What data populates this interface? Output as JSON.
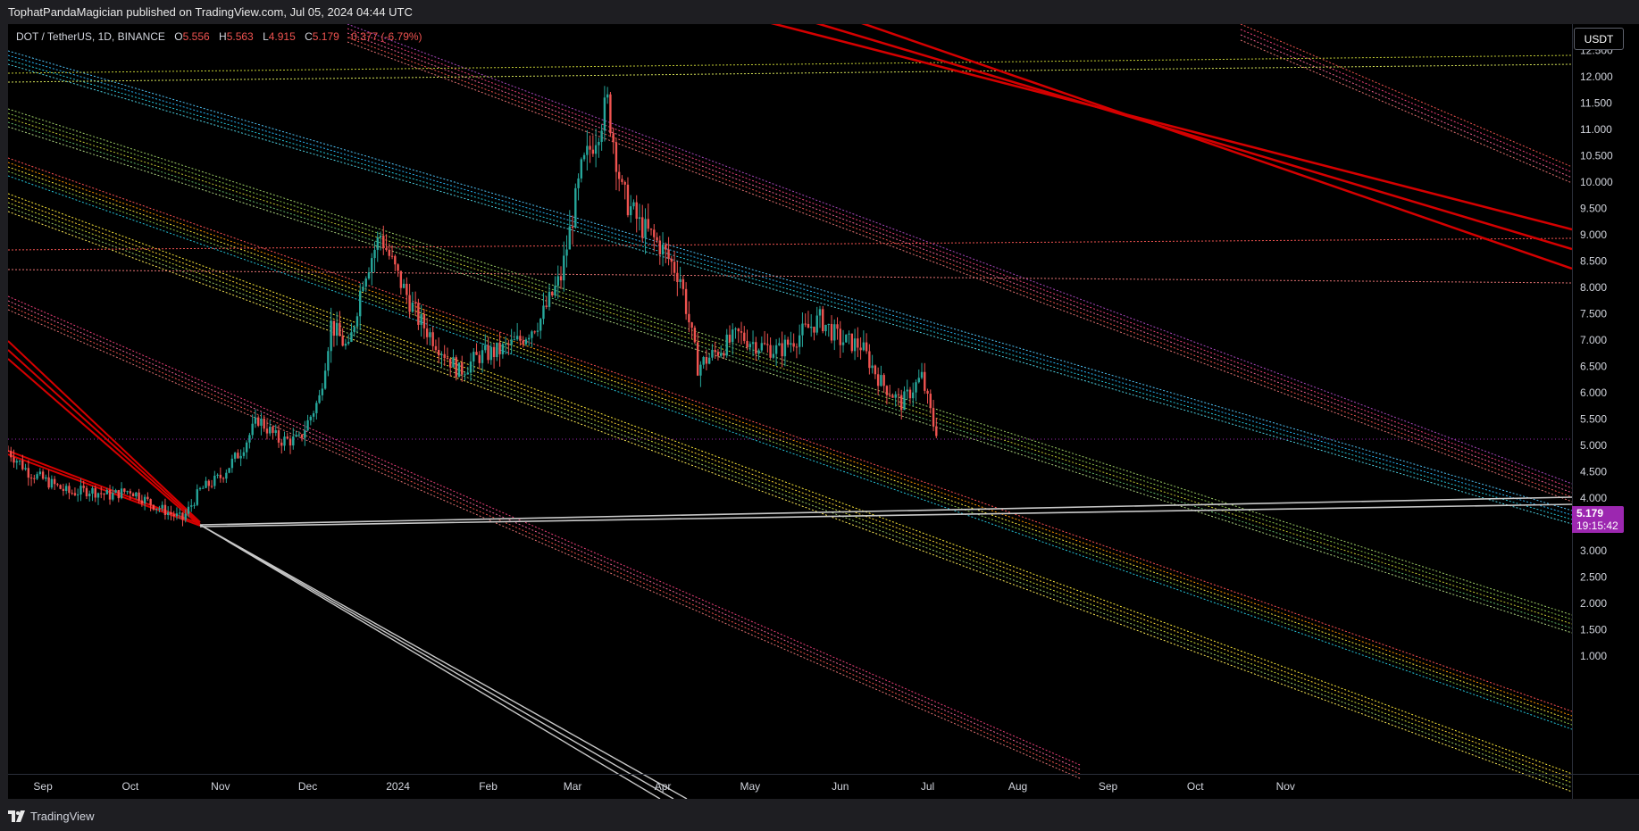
{
  "header": {
    "published_by": "TophatPandaMagician published on TradingView.com, Jul 05, 2024 04:44 UTC"
  },
  "legend": {
    "symbol": "DOT / TetherUS, 1D, BINANCE",
    "open_label": "O",
    "open": "5.556",
    "high_label": "H",
    "high": "5.563",
    "low_label": "L",
    "low": "4.915",
    "close_label": "C",
    "close": "5.179",
    "change": "-0.377 (-6.79%)"
  },
  "price_axis": {
    "currency": "USDT",
    "last_price": "5.179",
    "countdown": "19:15:42"
  },
  "footer": {
    "brand": "TradingView"
  },
  "colors": {
    "background": "#000000",
    "up": "#26a69a",
    "down": "#ef5350",
    "last_price": "#9c27b0",
    "red_trendline": "#d50000",
    "white_trendline": "#c8c8c8"
  },
  "chart_data": {
    "type": "candlestick",
    "symbol": "DOT / TetherUS",
    "interval": "1D",
    "exchange": "BINANCE",
    "y_ticks": [
      "12.500",
      "12.000",
      "11.500",
      "11.000",
      "10.500",
      "10.000",
      "9.500",
      "9.000",
      "8.500",
      "8.000",
      "7.500",
      "7.000",
      "6.500",
      "6.000",
      "5.500",
      "5.000",
      "4.500",
      "4.000",
      "3.500",
      "3.000",
      "2.500",
      "2.000",
      "1.500",
      "1.000"
    ],
    "x_ticks": [
      "Sep",
      "Oct",
      "Nov",
      "Dec",
      "2024",
      "Feb",
      "Mar",
      "Apr",
      "May",
      "Jun",
      "Jul",
      "Aug",
      "Sep",
      "Oct",
      "Nov"
    ],
    "ylim": [
      0.95,
      12.95
    ],
    "price_path": [
      [
        "2023-08-20",
        4.9
      ],
      [
        "2023-08-27",
        4.5
      ],
      [
        "2023-09-03",
        4.3
      ],
      [
        "2023-09-10",
        4.1
      ],
      [
        "2023-09-17",
        4.15
      ],
      [
        "2023-09-24",
        4.05
      ],
      [
        "2023-10-01",
        4.15
      ],
      [
        "2023-10-08",
        3.9
      ],
      [
        "2023-10-15",
        3.7
      ],
      [
        "2023-10-19",
        3.6
      ],
      [
        "2023-10-25",
        4.15
      ],
      [
        "2023-11-01",
        4.4
      ],
      [
        "2023-11-08",
        4.9
      ],
      [
        "2023-11-14",
        5.5
      ],
      [
        "2023-11-21",
        5.1
      ],
      [
        "2023-11-28",
        5.1
      ],
      [
        "2023-12-05",
        5.9
      ],
      [
        "2023-12-09",
        7.3
      ],
      [
        "2023-12-15",
        6.8
      ],
      [
        "2023-12-20",
        8.2
      ],
      [
        "2023-12-26",
        9.0
      ],
      [
        "2024-01-01",
        8.2
      ],
      [
        "2024-01-08",
        7.4
      ],
      [
        "2024-01-15",
        6.9
      ],
      [
        "2024-01-22",
        6.4
      ],
      [
        "2024-01-29",
        6.7
      ],
      [
        "2024-02-05",
        6.8
      ],
      [
        "2024-02-12",
        7.0
      ],
      [
        "2024-02-19",
        7.4
      ],
      [
        "2024-02-26",
        8.2
      ],
      [
        "2024-03-04",
        10.2
      ],
      [
        "2024-03-13",
        11.5
      ],
      [
        "2024-03-18",
        9.8
      ],
      [
        "2024-03-24",
        9.2
      ],
      [
        "2024-03-31",
        8.8
      ],
      [
        "2024-04-07",
        8.2
      ],
      [
        "2024-04-13",
        6.5
      ],
      [
        "2024-04-20",
        6.8
      ],
      [
        "2024-04-27",
        7.1
      ],
      [
        "2024-05-04",
        6.9
      ],
      [
        "2024-05-11",
        6.8
      ],
      [
        "2024-05-18",
        7.1
      ],
      [
        "2024-05-25",
        7.4
      ],
      [
        "2024-06-01",
        7.0
      ],
      [
        "2024-06-08",
        6.9
      ],
      [
        "2024-06-15",
        6.2
      ],
      [
        "2024-06-22",
        5.8
      ],
      [
        "2024-06-29",
        6.3
      ],
      [
        "2024-07-04",
        5.18
      ]
    ],
    "last_price": 5.179
  }
}
